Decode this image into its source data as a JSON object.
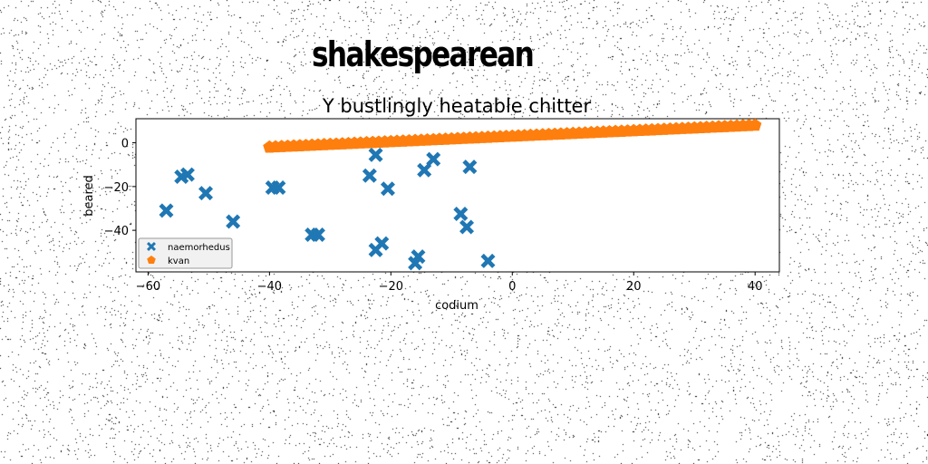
{
  "header": {
    "title": "shakespearean"
  },
  "chart_data": {
    "type": "scatter",
    "title": "Y bustlingly heatable chitter",
    "xlabel": "codium",
    "ylabel": "beared",
    "xlim": [
      -62,
      44
    ],
    "ylim": [
      -59,
      11
    ],
    "xticks": [
      -60,
      -40,
      -20,
      0,
      20,
      40
    ],
    "yticks": [
      -40,
      -20,
      0
    ],
    "legend_position": "lower-left",
    "grid": false,
    "series": [
      {
        "name": "naemorhedus",
        "marker": "x",
        "color": "#1f77b4",
        "points": [
          [
            -57,
            -31
          ],
          [
            -54.5,
            -15.5
          ],
          [
            -53.5,
            -14.5
          ],
          [
            -50.5,
            -23
          ],
          [
            -46,
            -36
          ],
          [
            -39.5,
            -20.5
          ],
          [
            -38.5,
            -20.5
          ],
          [
            -33,
            -42
          ],
          [
            -32,
            -42
          ],
          [
            -23.5,
            -15
          ],
          [
            -22.5,
            -5.5
          ],
          [
            -22.5,
            -49
          ],
          [
            -21.5,
            -46
          ],
          [
            -20.5,
            -21
          ],
          [
            -16,
            -55
          ],
          [
            -15.5,
            -52
          ],
          [
            -14.5,
            -12.5
          ],
          [
            -13,
            -7.5
          ],
          [
            -8.5,
            -32.5
          ],
          [
            -7.5,
            -38.5
          ],
          [
            -7,
            -11
          ],
          [
            -4,
            -54
          ]
        ]
      },
      {
        "name": "kvan",
        "marker": "pentagon",
        "color": "#ff7f0e",
        "x_start": -40,
        "x_end": 40,
        "y_start": -2,
        "y_end": 8,
        "count": 81
      }
    ]
  }
}
